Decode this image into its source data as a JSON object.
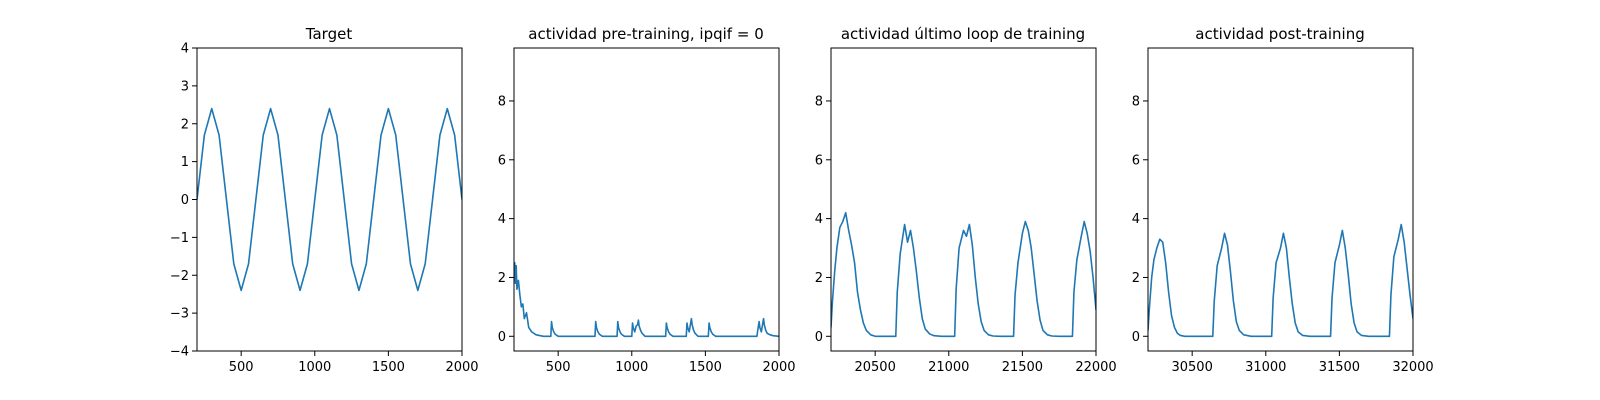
{
  "figure": {
    "background": "#ffffff",
    "line_color": "#1f77b4"
  },
  "chart_data": [
    {
      "type": "line",
      "title": "Target",
      "xlim": [
        200,
        2000
      ],
      "ylim": [
        -4,
        4
      ],
      "xticks": [
        500,
        1000,
        1500,
        2000
      ],
      "xtick_labels": [
        "500",
        "1000",
        "1500",
        "2000"
      ],
      "yticks": [
        -4,
        -3,
        -2,
        -1,
        0,
        1,
        2,
        3,
        4
      ],
      "ytick_labels": [
        "−4",
        "−3",
        "−2",
        "−1",
        "0",
        "1",
        "2",
        "3",
        "4"
      ],
      "series": [
        {
          "x": [
            200,
            250,
            300,
            350,
            400,
            450,
            500,
            550,
            600,
            650,
            700,
            750,
            800,
            850,
            900,
            950,
            1000,
            1050,
            1100,
            1150,
            1200,
            1250,
            1300,
            1350,
            1400,
            1450,
            1500,
            1550,
            1600,
            1650,
            1700,
            1750,
            1800,
            1850,
            1900,
            1950,
            2000
          ],
          "y": [
            0,
            1.7,
            2.4,
            1.7,
            0,
            -1.7,
            -2.4,
            -1.7,
            0,
            1.7,
            2.4,
            1.7,
            0,
            -1.7,
            -2.4,
            -1.7,
            0,
            1.7,
            2.4,
            1.7,
            0,
            -1.7,
            -2.4,
            -1.7,
            0,
            1.7,
            2.4,
            1.7,
            0,
            -1.7,
            -2.4,
            -1.7,
            0,
            1.7,
            2.4,
            1.7,
            0
          ]
        }
      ]
    },
    {
      "type": "line",
      "title": "actividad pre-training, ipqif = 0",
      "xlim": [
        200,
        2000
      ],
      "ylim": [
        -0.5,
        9.8
      ],
      "xticks": [
        500,
        1000,
        1500,
        2000
      ],
      "xtick_labels": [
        "500",
        "1000",
        "1500",
        "2000"
      ],
      "yticks": [
        0,
        2,
        4,
        6,
        8
      ],
      "ytick_labels": [
        "0",
        "2",
        "4",
        "6",
        "8"
      ],
      "series": [
        {
          "x": [
            200,
            205,
            210,
            215,
            220,
            230,
            240,
            250,
            260,
            270,
            285,
            300,
            320,
            350,
            400,
            450,
            455,
            460,
            470,
            480,
            500,
            750,
            755,
            760,
            770,
            780,
            800,
            900,
            905,
            910,
            920,
            930,
            950,
            1000,
            1005,
            1010,
            1020,
            1030,
            1040,
            1045,
            1050,
            1060,
            1070,
            1090,
            1150,
            1230,
            1235,
            1240,
            1250,
            1260,
            1280,
            1370,
            1375,
            1380,
            1390,
            1400,
            1405,
            1410,
            1420,
            1430,
            1450,
            1520,
            1525,
            1530,
            1540,
            1550,
            1570,
            1850,
            1860,
            1865,
            1870,
            1880,
            1890,
            1895,
            1900,
            1910,
            1920,
            1940,
            1960,
            2000
          ],
          "y": [
            2.3,
            2.5,
            1.8,
            2.4,
            1.6,
            1.9,
            1.4,
            1.0,
            1.1,
            0.6,
            0.8,
            0.3,
            0.15,
            0.05,
            0.0,
            0.0,
            0.5,
            0.3,
            0.15,
            0.07,
            0.0,
            0.0,
            0.5,
            0.3,
            0.15,
            0.07,
            0.0,
            0.0,
            0.5,
            0.3,
            0.15,
            0.07,
            0.0,
            0.0,
            0.45,
            0.3,
            0.15,
            0.35,
            0.4,
            0.55,
            0.35,
            0.2,
            0.1,
            0.0,
            0.0,
            0.0,
            0.45,
            0.3,
            0.15,
            0.07,
            0.0,
            0.0,
            0.45,
            0.3,
            0.15,
            0.45,
            0.6,
            0.4,
            0.2,
            0.1,
            0.0,
            0.0,
            0.45,
            0.3,
            0.15,
            0.07,
            0.0,
            0.0,
            0.35,
            0.5,
            0.3,
            0.15,
            0.45,
            0.6,
            0.4,
            0.2,
            0.1,
            0.05,
            0.02,
            0.0
          ]
        }
      ]
    },
    {
      "type": "line",
      "title": "actividad último loop de training",
      "xlim": [
        20200,
        22000
      ],
      "ylim": [
        -0.5,
        9.8
      ],
      "xticks": [
        20500,
        21000,
        21500,
        22000
      ],
      "xtick_labels": [
        "20500",
        "21000",
        "21500",
        "22000"
      ],
      "yticks": [
        0,
        2,
        4,
        6,
        8
      ],
      "ytick_labels": [
        "0",
        "2",
        "4",
        "6",
        "8"
      ],
      "series": [
        {
          "x": [
            20200,
            20210,
            20225,
            20240,
            20260,
            20280,
            20300,
            20320,
            20340,
            20360,
            20380,
            20400,
            20420,
            20440,
            20470,
            20500,
            20550,
            20600,
            20640,
            20650,
            20670,
            20700,
            20720,
            20740,
            20760,
            20780,
            20800,
            20820,
            20840,
            20870,
            20900,
            20950,
            21000,
            21040,
            21050,
            21070,
            21100,
            21120,
            21140,
            21160,
            21180,
            21200,
            21220,
            21240,
            21270,
            21300,
            21350,
            21400,
            21440,
            21450,
            21470,
            21500,
            21520,
            21540,
            21560,
            21580,
            21600,
            21620,
            21640,
            21670,
            21700,
            21750,
            21800,
            21840,
            21850,
            21870,
            21900,
            21920,
            21940,
            21960,
            21980,
            22000
          ],
          "y": [
            0.3,
            1.2,
            2.2,
            3.0,
            3.7,
            3.9,
            4.2,
            3.6,
            3.1,
            2.5,
            1.5,
            0.9,
            0.45,
            0.2,
            0.05,
            0.0,
            0.0,
            0.0,
            0.0,
            1.5,
            2.8,
            3.8,
            3.2,
            3.6,
            3.0,
            2.2,
            1.3,
            0.6,
            0.25,
            0.08,
            0.02,
            0.0,
            0.0,
            0.0,
            1.6,
            3.0,
            3.6,
            3.4,
            3.8,
            3.1,
            2.0,
            1.1,
            0.5,
            0.2,
            0.05,
            0.01,
            0.0,
            0.0,
            0.0,
            1.4,
            2.5,
            3.5,
            3.9,
            3.6,
            3.0,
            2.1,
            1.2,
            0.55,
            0.2,
            0.05,
            0.01,
            0.0,
            0.0,
            0.0,
            1.5,
            2.6,
            3.4,
            3.9,
            3.5,
            2.9,
            2.0,
            0.9
          ]
        }
      ]
    },
    {
      "type": "line",
      "title": "actividad post-training",
      "xlim": [
        30200,
        32000
      ],
      "ylim": [
        -0.5,
        9.8
      ],
      "xticks": [
        30500,
        31000,
        31500,
        32000
      ],
      "xtick_labels": [
        "30500",
        "31000",
        "31500",
        "32000"
      ],
      "yticks": [
        0,
        2,
        4,
        6,
        8
      ],
      "ytick_labels": [
        "0",
        "2",
        "4",
        "6",
        "8"
      ],
      "series": [
        {
          "x": [
            30200,
            30210,
            30225,
            30240,
            30260,
            30280,
            30300,
            30320,
            30340,
            30360,
            30380,
            30400,
            30420,
            30450,
            30500,
            30550,
            30600,
            30640,
            30650,
            30670,
            30700,
            30720,
            30740,
            30760,
            30780,
            30800,
            30820,
            30850,
            30900,
            30950,
            31000,
            31040,
            31050,
            31070,
            31100,
            31120,
            31140,
            31160,
            31180,
            31200,
            31220,
            31250,
            31300,
            31350,
            31400,
            31440,
            31450,
            31470,
            31500,
            31520,
            31540,
            31560,
            31580,
            31600,
            31620,
            31650,
            31700,
            31750,
            31800,
            31840,
            31850,
            31870,
            31900,
            31920,
            31940,
            31960,
            31980,
            32000
          ],
          "y": [
            0.2,
            1.0,
            2.0,
            2.6,
            3.0,
            3.3,
            3.2,
            2.5,
            1.5,
            0.7,
            0.3,
            0.1,
            0.03,
            0.0,
            0.0,
            0.0,
            0.0,
            0.0,
            1.2,
            2.4,
            3.0,
            3.5,
            3.1,
            2.2,
            1.2,
            0.5,
            0.2,
            0.05,
            0.0,
            0.0,
            0.0,
            0.0,
            1.3,
            2.5,
            3.0,
            3.5,
            3.0,
            2.0,
            1.1,
            0.45,
            0.15,
            0.03,
            0.0,
            0.0,
            0.0,
            0.0,
            1.3,
            2.5,
            3.1,
            3.6,
            3.0,
            2.1,
            1.1,
            0.45,
            0.15,
            0.03,
            0.0,
            0.0,
            0.0,
            0.0,
            1.4,
            2.7,
            3.3,
            3.8,
            3.2,
            2.3,
            1.4,
            0.6
          ]
        }
      ]
    }
  ]
}
